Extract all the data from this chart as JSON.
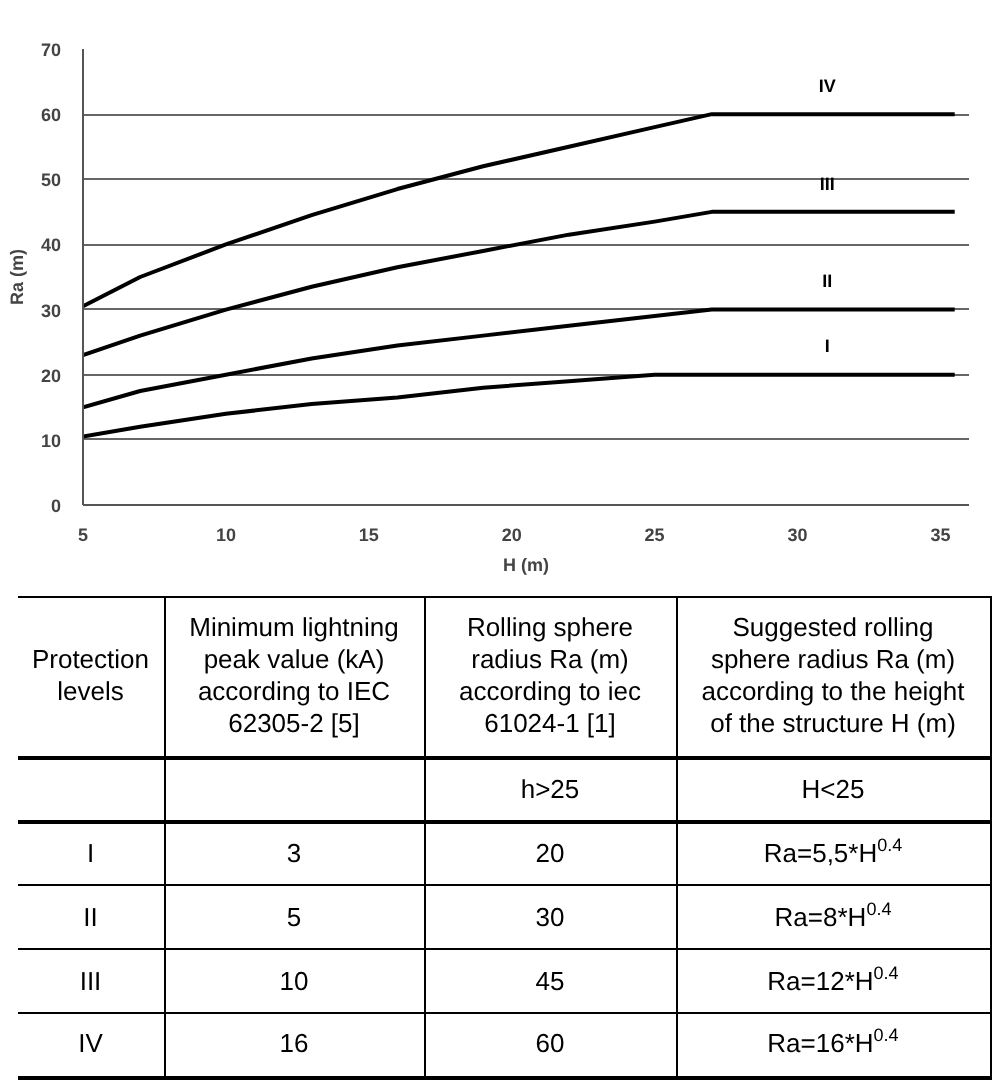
{
  "chart_data": [
    {
      "type": "line",
      "xlabel": "H (m)",
      "ylabel": "Ra (m)",
      "xlim": [
        5,
        36
      ],
      "ylim": [
        0,
        70
      ],
      "xticks": [
        5,
        10,
        15,
        20,
        25,
        30,
        35
      ],
      "yticks": [
        0,
        10,
        20,
        30,
        40,
        50,
        60,
        70
      ],
      "grid": "y",
      "series": [
        {
          "name": "I",
          "color": "#000000",
          "x": [
            5,
            7,
            10,
            13,
            16,
            19,
            22,
            25,
            35.5
          ],
          "values": [
            10.5,
            12,
            14,
            15.5,
            16.5,
            18,
            19,
            20,
            20
          ]
        },
        {
          "name": "II",
          "color": "#000000",
          "x": [
            5,
            7,
            10,
            13,
            16,
            19,
            22,
            25,
            27,
            35.5
          ],
          "values": [
            15,
            17.5,
            20,
            22.5,
            24.5,
            26,
            27.5,
            29,
            30,
            30
          ]
        },
        {
          "name": "III",
          "color": "#000000",
          "x": [
            5,
            7,
            10,
            13,
            16,
            19,
            22,
            25,
            27,
            35.5
          ],
          "values": [
            23,
            26,
            30,
            33.5,
            36.5,
            39,
            41.5,
            43.5,
            45,
            45
          ]
        },
        {
          "name": "IV",
          "color": "#000000",
          "x": [
            5,
            7,
            10,
            13,
            16,
            19,
            22,
            25,
            27,
            35.5
          ],
          "values": [
            30.5,
            35,
            40,
            44.5,
            48.5,
            52,
            55,
            58,
            60,
            60
          ]
        }
      ]
    },
    {
      "type": "other",
      "categories": [
        "Protection levels",
        "Minimum lightning peak value (kA) according to IEC 62305-2 [5]",
        "Rolling sphere radius Ra (m) according to iec 61024-1 [1]",
        "Suggested rolling sphere radius Ra (m) according to the height of the structure H (m)"
      ],
      "cell_labels": [
        [
          null,
          null,
          "h>25",
          "H<25"
        ],
        [
          "I",
          "3",
          "20",
          "Ra=5,5*H$^{0.4}$"
        ],
        [
          "II",
          "5",
          "30",
          "Ra=8*H$^{0.4}$"
        ],
        [
          "III",
          "10",
          "45",
          "Ra=12*H$^{0.4}$"
        ],
        [
          "IV",
          "16",
          "60",
          "Ra=16*H$^{0.4}$"
        ]
      ]
    }
  ]
}
